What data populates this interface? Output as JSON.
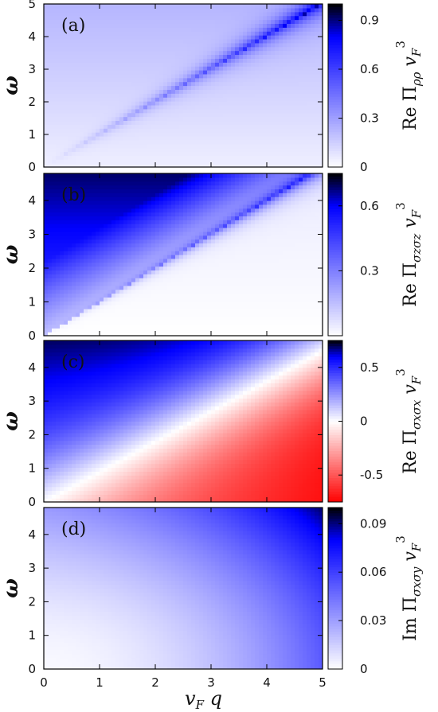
{
  "colors": {
    "low": "#ffffff",
    "mid": "#0000ff",
    "high": "#000000",
    "negative": "#ff0000"
  },
  "x_axis_label": "v_F q",
  "chart_data": [
    {
      "type": "heatmap",
      "panel": "(a)",
      "ylabel": "ω",
      "colorbar_label": "Re Π_ρρ v_F^3",
      "xlim": [
        0,
        5
      ],
      "ylim": [
        0,
        5
      ],
      "x_ticks": [
        "0",
        "1",
        "2",
        "3",
        "4",
        "5"
      ],
      "y_ticks": [
        "0",
        "1",
        "2",
        "3",
        "4",
        "5"
      ],
      "colorbar_range": [
        0,
        1.0
      ],
      "colorbar_ticks": [
        "0",
        "0.3",
        "0.6",
        "0.9"
      ],
      "colormap": [
        "white",
        "blue",
        "black"
      ],
      "feature": "peak along the line ω = v_F q, strongest near (5, 5)"
    },
    {
      "type": "heatmap",
      "panel": "(b)",
      "ylabel": "ω",
      "colorbar_label": "Re Π_σzσz v_F^3",
      "xlim": [
        0,
        5
      ],
      "ylim": [
        0,
        4.8
      ],
      "x_ticks": [
        "0",
        "1",
        "2",
        "3",
        "4",
        "5"
      ],
      "y_ticks": [
        "0",
        "1",
        "2",
        "3",
        "4"
      ],
      "colorbar_range": [
        0,
        0.75
      ],
      "colorbar_ticks": [
        "0.3",
        "0.6"
      ],
      "colormap": [
        "white",
        "blue",
        "black"
      ],
      "feature": "blue region for ω > v_F q, peak along ω = v_F q, black near (5, 4.8)"
    },
    {
      "type": "heatmap",
      "panel": "(c)",
      "ylabel": "ω",
      "colorbar_label": "Re Π_σxσx v_F^3",
      "xlim": [
        0,
        5
      ],
      "ylim": [
        0,
        4.8
      ],
      "x_ticks": [
        "0",
        "1",
        "2",
        "3",
        "4",
        "5"
      ],
      "y_ticks": [
        "0",
        "1",
        "2",
        "3",
        "4"
      ],
      "colorbar_range": [
        -0.75,
        0.75
      ],
      "colorbar_ticks": [
        "-0.5",
        "0",
        "0.5"
      ],
      "colormap": [
        "red",
        "white",
        "blue",
        "black"
      ],
      "feature": "positive (blue) above ω = v_F q, negative (red) below"
    },
    {
      "type": "heatmap",
      "panel": "(d)",
      "ylabel": "ω",
      "colorbar_label": "Im Π_σxσy v_F^3",
      "xlim": [
        0,
        5
      ],
      "ylim": [
        0,
        4.8
      ],
      "x_ticks": [
        "0",
        "1",
        "2",
        "3",
        "4",
        "5"
      ],
      "y_ticks": [
        "0",
        "1",
        "2",
        "3",
        "4"
      ],
      "colorbar_range": [
        0,
        0.1
      ],
      "colorbar_ticks": [
        "0",
        "0.03",
        "0.06",
        "0.09"
      ],
      "colormap": [
        "white",
        "blue",
        "black"
      ],
      "feature": "increases toward large q and large ω, black in upper-right corner"
    }
  ]
}
